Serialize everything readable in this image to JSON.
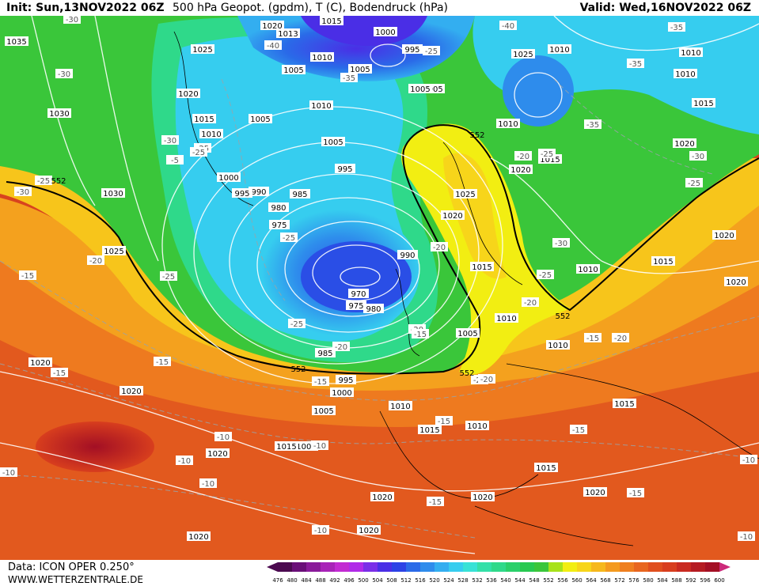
{
  "header": {
    "init_label": "Init:",
    "init_value": "Sun,13NOV2022 06Z",
    "title": "500 hPa Geopot. (gpdm), T (C), Bodendruck (hPa)",
    "valid_label": "Valid:",
    "valid_value": "Wed,16NOV2022 06Z"
  },
  "footer": {
    "data_source": "Data: ICON OPER 0.250°",
    "website": "WWW.WETTERZENTRALE.DE"
  },
  "colorbar": {
    "ticks": [
      "476",
      "480",
      "484",
      "488",
      "492",
      "496",
      "500",
      "504",
      "508",
      "512",
      "516",
      "520",
      "524",
      "528",
      "532",
      "536",
      "540",
      "544",
      "548",
      "552",
      "556",
      "560",
      "564",
      "568",
      "572",
      "576",
      "580",
      "584",
      "588",
      "592",
      "596",
      "600"
    ],
    "colors": [
      "#4b0a50",
      "#6a0f78",
      "#8a1a9a",
      "#a823b8",
      "#c22ad2",
      "#b02ae8",
      "#7a2ee8",
      "#4a2ee6",
      "#2c42e6",
      "#2a6ae8",
      "#2e8cec",
      "#33aef0",
      "#36cdef",
      "#38e2d6",
      "#34e0a8",
      "#2fd98a",
      "#2ad06a",
      "#28c950",
      "#3ac63a",
      "#a7e21a",
      "#f2ee12",
      "#f7d51a",
      "#f6b81c",
      "#f49a1e",
      "#ef7f1f",
      "#e8661f",
      "#e04f1e",
      "#d83e1e",
      "#c92a20",
      "#b51b22",
      "#a30f24",
      "#cc2a7a"
    ]
  },
  "pressure_labels": [
    "1015",
    "1020",
    "1013",
    "1000",
    "995",
    "1025",
    "1010",
    "1005",
    "1005",
    "1005",
    "1010",
    "1035",
    "1025",
    "1020",
    "1005",
    "1010",
    "1015",
    "1010",
    "1005",
    "1010",
    "1000",
    "995",
    "1030",
    "990",
    "995",
    "985",
    "980",
    "975",
    "1030",
    "1025",
    "990",
    "1015",
    "970",
    "975",
    "980",
    "1005",
    "985",
    "1000",
    "995",
    "1005",
    "1010",
    "1010",
    "1015",
    "1010",
    "1020",
    "1025",
    "1020",
    "1015",
    "1010",
    "1020",
    "1015",
    "1010",
    "1015",
    "1020",
    "1020",
    "1020",
    "1020",
    "1020",
    "1020",
    "1005",
    "1015",
    "1010",
    "1020",
    "1020",
    "1005",
    "1015",
    "1010",
    "1015",
    "1020",
    "1020"
  ],
  "temperature_labels": [
    "-30",
    "-40",
    "-25",
    "-30",
    "-30",
    "-25",
    "-25",
    "-30",
    "-25",
    "-20",
    "-15",
    "-25",
    "-20",
    "-20",
    "-25",
    "-20",
    "-15",
    "-15",
    "-10",
    "-10",
    "-10",
    "-10",
    "-15",
    "-10",
    "-20",
    "-35",
    "-35",
    "-35",
    "-40",
    "-35",
    "-30",
    "-30",
    "-25",
    "-25",
    "-20",
    "-15",
    "-25",
    "-20",
    "-20",
    "-15",
    "-10",
    "-15",
    "-15",
    "-10",
    "-15",
    "-15",
    "-20",
    "-25",
    "-10",
    "-5"
  ],
  "height_labels": [
    "552",
    "552",
    "552",
    "552",
    "552"
  ]
}
